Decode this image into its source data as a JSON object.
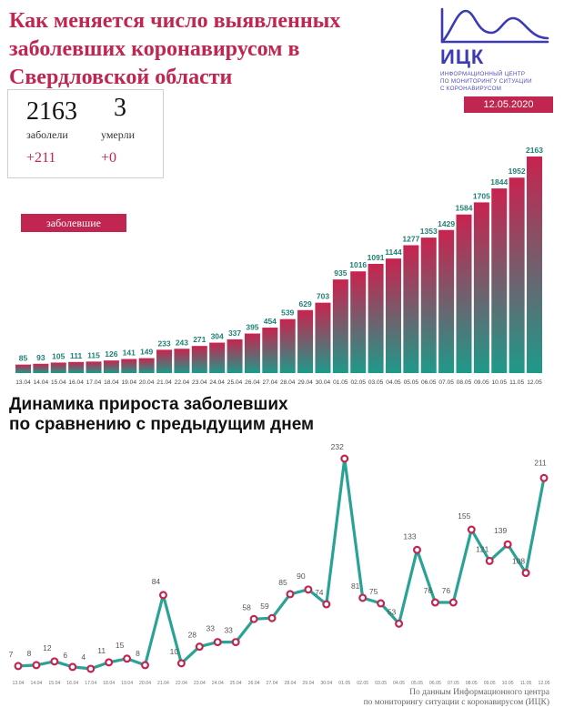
{
  "header": {
    "title_lines": [
      "Как меняется число выявленных",
      "заболевших коронавирусом в",
      "Свердловской области"
    ],
    "logo_abbr": "ИЦК",
    "logo_sub_lines": [
      "ИНФОРМАЦИОННЫЙ ЦЕНТР",
      "ПО МОНИТОРИНГУ СИТУАЦИИ",
      "С КОРОНАВИРУСОМ"
    ],
    "date": "12.05.2020"
  },
  "stats": {
    "cases": "2163",
    "cases_label": "заболели",
    "cases_delta": "+211",
    "deaths": "3",
    "deaths_label": "умерли",
    "deaths_delta": "+0"
  },
  "legend_label": "заболевшие",
  "subtitle_lines": [
    "Динамика прироста заболевших",
    "по сравнению с предыдущим днем"
  ],
  "source_lines": [
    "По данным Информационного центра",
    "по мониторингу ситуации с коронавирусом (ИЦК)"
  ],
  "colors": {
    "accent": "#c0264f",
    "teal": "#1e9a8a",
    "line": "#2aa296",
    "marker": "#c0264f"
  },
  "chart_data": [
    {
      "type": "bar",
      "categories": [
        "13.04",
        "14.04",
        "15.04",
        "16.04",
        "17.04",
        "18.04",
        "19.04",
        "20.04",
        "21.04",
        "22.04",
        "23.04",
        "24.04",
        "25.04",
        "26.04",
        "27.04",
        "28.04",
        "29.04",
        "30.04",
        "01.05",
        "02.05",
        "03.05",
        "04.05",
        "05.05",
        "06.05",
        "07.05",
        "08.05",
        "09.05",
        "10.05",
        "11.05",
        "12.05"
      ],
      "values": [
        85,
        93,
        105,
        111,
        115,
        126,
        141,
        149,
        233,
        243,
        271,
        304,
        337,
        395,
        454,
        539,
        629,
        703,
        935,
        1016,
        1091,
        1144,
        1277,
        1353,
        1429,
        1584,
        1705,
        1844,
        1952,
        2163
      ],
      "series": [
        {
          "name": "заболевшие",
          "values": [
            85,
            93,
            105,
            111,
            115,
            126,
            141,
            149,
            233,
            243,
            271,
            304,
            337,
            395,
            454,
            539,
            629,
            703,
            935,
            1016,
            1091,
            1144,
            1277,
            1353,
            1429,
            1584,
            1705,
            1844,
            1952,
            2163
          ]
        }
      ],
      "ylim": [
        0,
        2200
      ]
    },
    {
      "type": "line",
      "x": [
        "13.04",
        "14.04",
        "15.04",
        "16.04",
        "17.04",
        "18.04",
        "19.04",
        "20.04",
        "21.04",
        "22.04",
        "23.04",
        "24.04",
        "25.04",
        "26.04",
        "27.04",
        "28.04",
        "29.04",
        "30.04",
        "01.05",
        "02.05",
        "03.05",
        "04.05",
        "05.05",
        "06.05",
        "07.05",
        "08.05",
        "09.05",
        "10.05",
        "11.05",
        "12.05"
      ],
      "values": [
        7,
        8,
        12,
        6,
        4,
        11,
        15,
        8,
        84,
        10,
        28,
        33,
        33,
        58,
        59,
        85,
        90,
        74,
        232,
        81,
        75,
        53,
        133,
        76,
        76,
        155,
        121,
        139,
        108,
        211
      ],
      "ylim": [
        0,
        240
      ]
    }
  ]
}
